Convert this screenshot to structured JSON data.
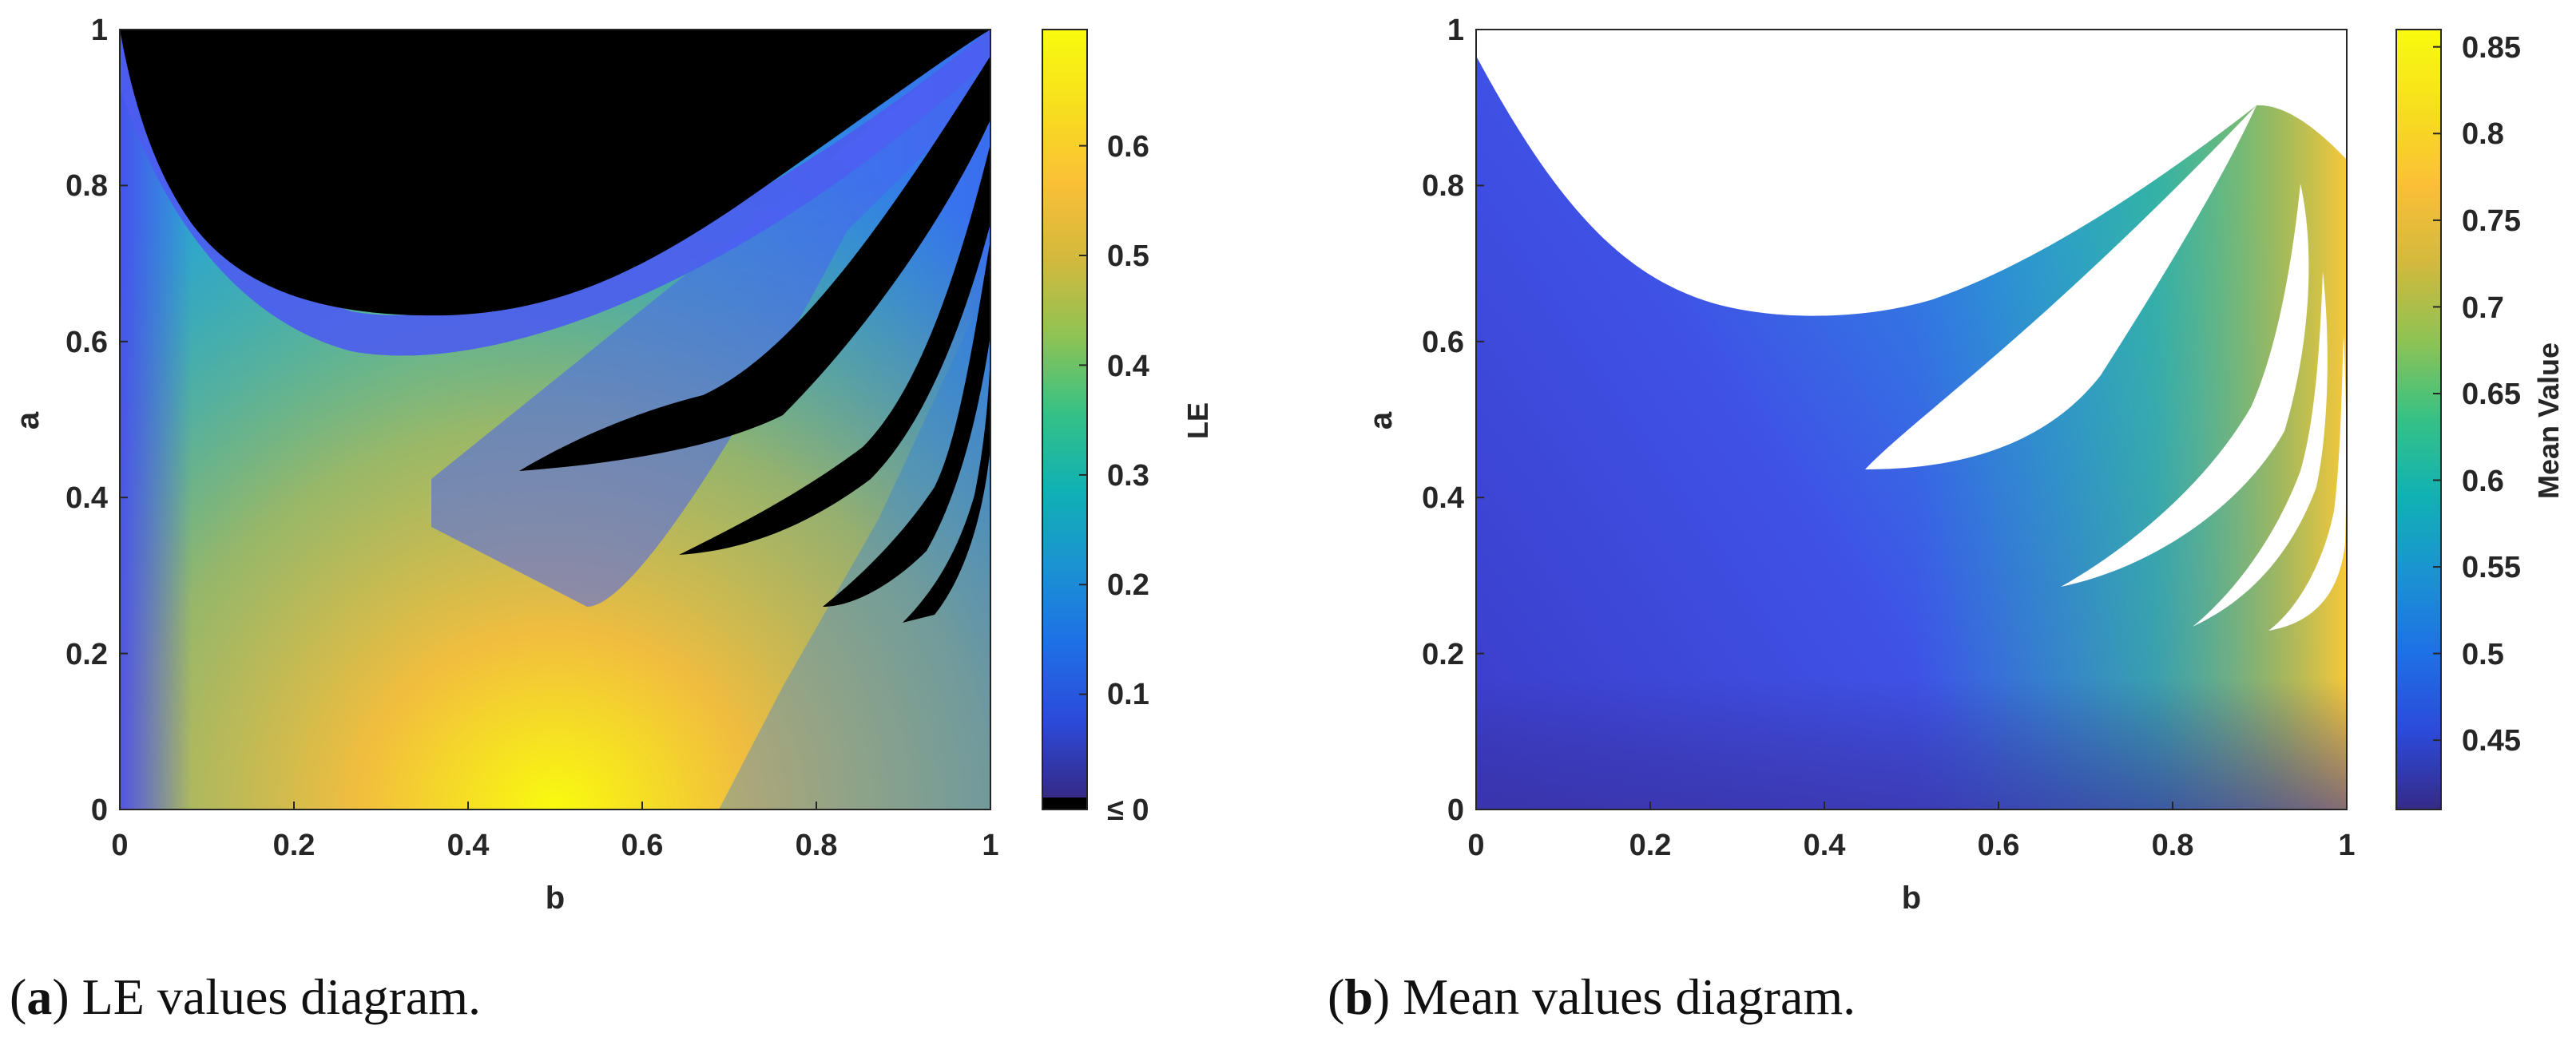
{
  "chart_data": [
    {
      "type": "heatmap",
      "caption_letter": "a",
      "caption_text": "LE values diagram.",
      "xlabel": "b",
      "ylabel": "a",
      "xlim": [
        0,
        1
      ],
      "ylim": [
        0,
        1
      ],
      "xticks": [
        "0",
        "0.2",
        "0.4",
        "0.6",
        "0.8",
        "1"
      ],
      "yticks": [
        "0",
        "0.2",
        "0.4",
        "0.6",
        "0.8",
        "1"
      ],
      "colorbar": {
        "label": "LE",
        "range": [
          0,
          0.7
        ],
        "ticks": [
          "0.1",
          "0.2",
          "0.3",
          "0.4",
          "0.5",
          "0.6"
        ],
        "special_label": "≤ 0",
        "special_color": "#000000"
      },
      "regions": [
        {
          "name": "non-chaotic (LE ≤ 0) upper region",
          "color": "#000000"
        },
        {
          "name": "high LE band near a = 0, b ≈ 0.2–0.5",
          "value": 0.65
        }
      ]
    },
    {
      "type": "heatmap",
      "caption_letter": "b",
      "caption_text": "Mean values diagram.",
      "xlabel": "b",
      "ylabel": "a",
      "xlim": [
        0,
        1
      ],
      "ylim": [
        0,
        1
      ],
      "xticks": [
        "0",
        "0.2",
        "0.4",
        "0.6",
        "0.8",
        "1"
      ],
      "yticks": [
        "0",
        "0.2",
        "0.4",
        "0.6",
        "0.8",
        "1"
      ],
      "colorbar": {
        "label": "Mean Value",
        "range": [
          0.405,
          0.855
        ],
        "ticks": [
          "0.45",
          "0.5",
          "0.55",
          "0.6",
          "0.65",
          "0.7",
          "0.75",
          "0.8",
          "0.85"
        ]
      },
      "regions": [
        {
          "name": "undefined (white) upper region",
          "color": "#ffffff"
        },
        {
          "name": "high mean near b = 1",
          "value": 0.82
        }
      ]
    }
  ],
  "colors": {
    "parula": [
      "#352a87",
      "#2c4ada",
      "#1e70e6",
      "#1b92d2",
      "#10b1b4",
      "#35c186",
      "#8ec354",
      "#d2b93d",
      "#fbbf37",
      "#f7df1d",
      "#f9fb0e"
    ]
  }
}
